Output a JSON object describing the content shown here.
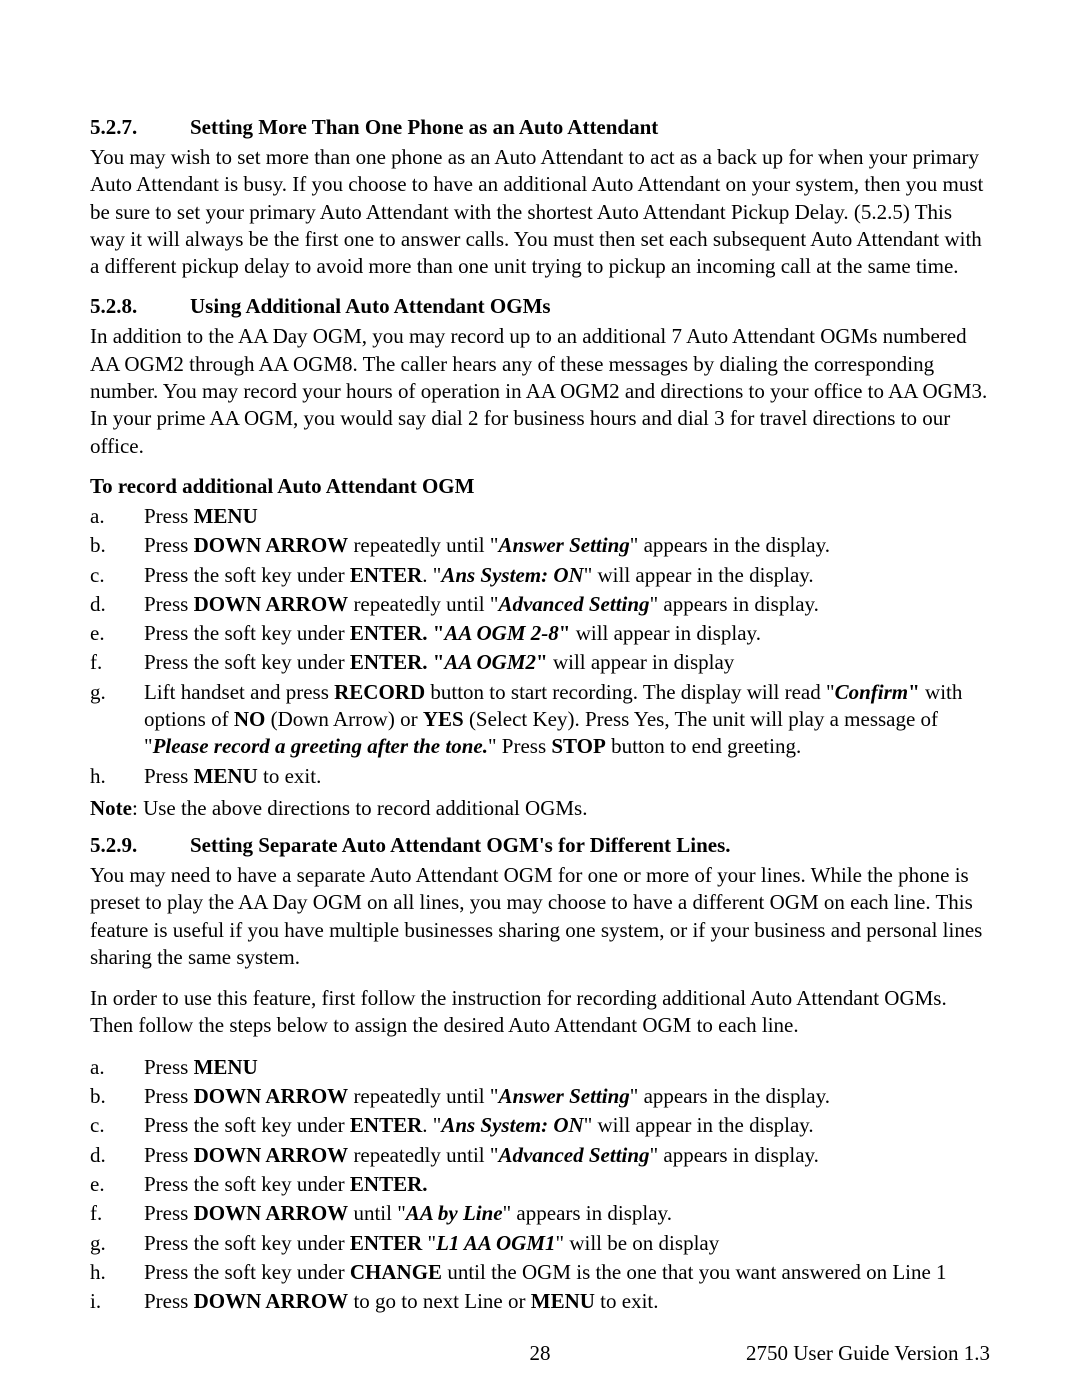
{
  "section527": {
    "num": "5.2.7.",
    "title": "Setting More Than One Phone as an Auto Attendant",
    "para": "You may wish to set more than one phone as an Auto Attendant to act as a back up for when your primary Auto Attendant is busy.  If you choose to have an additional Auto Attendant on your system, then you must be sure to set your primary Auto Attendant with the shortest Auto Attendant Pickup Delay. (5.2.5) This way it will always be the first one to answer calls.  You must then set each subsequent Auto Attendant with a different pickup delay to avoid more than one unit trying to pickup an incoming call at the same time."
  },
  "section528": {
    "num": "5.2.8.",
    "title": "Using Additional Auto Attendant OGMs",
    "para": "In addition to the AA Day OGM, you may record up to an additional 7 Auto Attendant OGMs numbered AA OGM2 through AA OGM8.  The caller hears any of these messages by dialing the corresponding number.  You may record your hours of operation in AA OGM2 and directions to your office to AA OGM3.  In your prime AA OGM, you would say dial 2 for business hours and dial 3 for travel directions to our office.",
    "subheading": "To record additional Auto Attendant OGM",
    "steps": {
      "a_pre": "Press ",
      "a_b1": "MENU",
      "b_pre": "Press ",
      "b_b1": "DOWN ARROW",
      "b_mid": " repeatedly until \"",
      "b_i1": "Answer Setting",
      "b_post": "\" appears in the display.",
      "c_pre": "Press the soft key under ",
      "c_b1": "ENTER",
      "c_mid": ".  \"",
      "c_i1": "Ans System: ON",
      "c_post": "\" will appear in the display.",
      "d_pre": "Press ",
      "d_b1": "DOWN ARROW",
      "d_mid": " repeatedly until \"",
      "d_i1": "Advanced Setting",
      "d_post": "\" appears in display.",
      "e_pre": "Press the soft key under ",
      "e_b1": "ENTER.  \"",
      "e_i1": "AA OGM 2-8",
      "e_b2": "\"",
      "e_post": " will appear in display.",
      "f_pre": "Press the soft key under ",
      "f_b1": "ENTER.  \"",
      "f_i1": "AA OGM2",
      "f_b2": "\"",
      "f_post": " will appear in display",
      "g_pre": "Lift handset and press ",
      "g_b1": "RECORD",
      "g_mid1": " button to start recording.  The display will read \"",
      "g_i1": "Confirm",
      "g_b2": "\"",
      "g_mid2": " with options of ",
      "g_b3": "NO",
      "g_mid3": " (Down Arrow) or ",
      "g_b4": "YES",
      "g_mid4": " (Select Key). Press Yes,  The unit will play a message of  \"",
      "g_i2": "Please record a greeting after the tone.",
      "g_mid5": "\"  Press ",
      "g_b5": "STOP",
      "g_post": "  button to end greeting.",
      "h_pre": "Press ",
      "h_b1": "MENU",
      "h_post": " to exit."
    },
    "note_b": "Note",
    "note_rest": ": Use the above directions to record additional OGMs."
  },
  "section529": {
    "num": "5.2.9.",
    "title": "Setting Separate Auto Attendant OGM's for Different Lines.",
    "para1": "You may need to have a separate Auto Attendant OGM for one or more of your lines.  While the phone is preset to play the AA Day OGM on all lines, you may choose to have a different OGM on each line.  This feature is useful if you have multiple businesses sharing one system, or if your business and personal lines sharing the same system.",
    "para2": "In order to use this feature, first follow the instruction for recording additional Auto Attendant OGMs.  Then follow the steps below to assign the desired Auto Attendant OGM to each line.",
    "steps": {
      "a_pre": "Press ",
      "a_b1": "MENU",
      "b_pre": "Press ",
      "b_b1": "DOWN ARROW",
      "b_mid": " repeatedly until \"",
      "b_i1": "Answer Setting",
      "b_post": "\" appears in the display.",
      "c_pre": "Press the soft key under ",
      "c_b1": "ENTER",
      "c_mid": ".  \"",
      "c_i1": "Ans System: ON",
      "c_post": "\" will appear in the display.",
      "d_pre": "Press ",
      "d_b1": "DOWN ARROW",
      "d_mid": " repeatedly until \"",
      "d_i1": "Advanced Setting",
      "d_post": "\" appears in display.",
      "e_pre": "Press the soft key under ",
      "e_b1": "ENTER.",
      "f_pre": "Press ",
      "f_b1": "DOWN ARROW",
      "f_mid": "  until \"",
      "f_i1": "AA by Line",
      "f_post": "\" appears in display.",
      "g_pre": "Press the soft key under ",
      "g_b1": "ENTER",
      "g_mid": "   \"",
      "g_i1": "L1 AA OGM1",
      "g_post": "\" will be on display",
      "h_pre": "Press the soft key under ",
      "h_b1": "CHANGE",
      "h_post": " until the OGM is the one that you want answered on Line 1",
      "i_pre": "Press ",
      "i_b1": "DOWN ARROW",
      "i_mid": "  to go to next Line or ",
      "i_b2": "MENU",
      "i_post": " to exit."
    }
  },
  "footer": {
    "page_num": "28",
    "guide": "2750 User Guide Version 1.3"
  },
  "letters": {
    "a": "a.",
    "b": "b.",
    "c": "c.",
    "d": "d.",
    "e": "e.",
    "f": "f.",
    "g": "g.",
    "h": "h.",
    "i": "i."
  }
}
